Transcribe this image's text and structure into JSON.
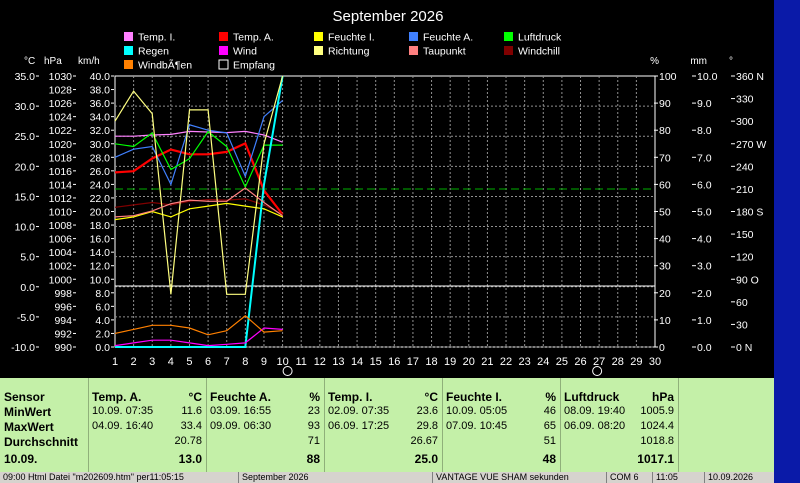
{
  "chart_data": {
    "type": "line",
    "title": "September 2026",
    "x": [
      1,
      2,
      3,
      4,
      5,
      6,
      7,
      8,
      9,
      10
    ],
    "xticks": [
      1,
      2,
      3,
      4,
      5,
      6,
      7,
      8,
      9,
      10,
      11,
      12,
      13,
      14,
      15,
      16,
      17,
      18,
      19,
      20,
      21,
      22,
      23,
      24,
      25,
      26,
      27,
      28,
      29,
      30
    ],
    "xlim": [
      1,
      30
    ],
    "axes_left": [
      {
        "unit": "°C",
        "ticks": [
          "35.0",
          "30.0",
          "25.0",
          "20.0",
          "15.0",
          "10.0",
          "5.0",
          "0.0",
          "-5.0",
          "-10.0"
        ],
        "range": [
          -10,
          35
        ]
      },
      {
        "unit": "hPa",
        "ticks": [
          "1030",
          "1028",
          "1026",
          "1024",
          "1022",
          "1020",
          "1018",
          "1016",
          "1014",
          "1012",
          "1010",
          "1008",
          "1006",
          "1004",
          "1002",
          "1000",
          "998",
          "996",
          "994",
          "992",
          "990"
        ],
        "range": [
          990,
          1030
        ]
      },
      {
        "unit": "km/h",
        "ticks": [
          "40.0",
          "38.0",
          "36.0",
          "34.0",
          "32.0",
          "30.0",
          "28.0",
          "26.0",
          "24.0",
          "22.0",
          "20.0",
          "18.0",
          "16.0",
          "14.0",
          "12.0",
          "10.0",
          "8.0",
          "6.0",
          "4.0",
          "2.0",
          "0.0"
        ],
        "range": [
          0,
          40
        ]
      }
    ],
    "axes_right": [
      {
        "unit": "%",
        "ticks": [
          "100",
          "90",
          "80",
          "70",
          "60",
          "50",
          "40",
          "30",
          "20",
          "10",
          "0"
        ],
        "range": [
          0,
          100
        ]
      },
      {
        "unit": "mm",
        "ticks": [
          "10.0",
          "9.0",
          "8.0",
          "7.0",
          "6.0",
          "5.0",
          "4.0",
          "3.0",
          "2.0",
          "1.0",
          "0.0"
        ],
        "range": [
          0,
          10
        ]
      },
      {
        "unit": "°",
        "ticks": [
          "360 N",
          "330",
          "300",
          "270 W",
          "240",
          "210",
          "180 S",
          "150",
          "120",
          "90  O",
          "60",
          "30",
          "0    N"
        ],
        "range": [
          0,
          360
        ]
      }
    ],
    "reference_line": {
      "color": "#00b000",
      "value_pct": 58.3
    },
    "series": [
      {
        "name": "Temp. I.",
        "color": "#ff80ff",
        "axis": "C",
        "values": [
          25.0,
          25.0,
          25.2,
          25.3,
          25.8,
          25.7,
          25.6,
          25.8,
          25.2,
          24.0
        ]
      },
      {
        "name": "Temp. A.",
        "color": "#ff0000",
        "axis": "C",
        "values": [
          19.0,
          19.2,
          21.3,
          22.8,
          22.0,
          22.0,
          22.4,
          23.8,
          16.0,
          12.0
        ]
      },
      {
        "name": "Feuchte I.",
        "color": "#ffff00",
        "axis": "pct",
        "values": [
          47,
          48,
          50,
          48,
          51,
          52,
          53,
          52,
          51,
          48
        ]
      },
      {
        "name": "Feuchte A.",
        "color": "#4080ff",
        "axis": "pct",
        "values": [
          70,
          73,
          74,
          60,
          82,
          80,
          79,
          63,
          85,
          91
        ]
      },
      {
        "name": "Luftdruck",
        "color": "#00ff00",
        "axis": "hPa",
        "values": [
          1020.0,
          1019.6,
          1021.6,
          1016.2,
          1017.8,
          1021.8,
          1019.6,
          1013.6,
          1019.8,
          1019.8
        ]
      },
      {
        "name": "Windchill",
        "color": "#800000",
        "axis": "C",
        "values": [
          13.2,
          13.6,
          14.0,
          13.6,
          14.2,
          14.5,
          14.4,
          14.6,
          13.6,
          12.0
        ]
      },
      {
        "name": "Regen",
        "color": "#00ffff",
        "axis": "mm",
        "values": [
          0,
          0,
          0,
          0,
          0,
          0,
          0,
          0,
          6.0,
          10.0
        ]
      },
      {
        "name": "Wind",
        "color": "#ff00ff",
        "axis": "kmh",
        "values": [
          0.2,
          0.6,
          1.0,
          1.0,
          0.6,
          0.2,
          0.4,
          0.6,
          2.8,
          2.6
        ]
      },
      {
        "name": "Windböen",
        "color": "#ff8000",
        "axis": "kmh",
        "values": [
          2.0,
          2.6,
          3.2,
          3.2,
          2.8,
          1.8,
          2.4,
          4.6,
          2.2,
          2.4
        ]
      },
      {
        "name": "Richtung",
        "color": "#ffff80",
        "axis": "deg",
        "values": [
          300,
          340,
          310,
          70,
          315,
          315,
          70,
          70,
          270,
          360
        ]
      },
      {
        "name": "Taupunkt",
        "color": "#ff8080",
        "axis": "C",
        "values": [
          11.6,
          11.8,
          12.6,
          13.8,
          14.4,
          14.2,
          14.2,
          16.4,
          14.0,
          11.8
        ]
      },
      {
        "name": "Empfang",
        "color": "#ffffff",
        "axis": "pct",
        "values": [
          null,
          null,
          null,
          null,
          null,
          null,
          null,
          null,
          null,
          null
        ]
      }
    ],
    "legend_labels": [
      "Temp. I.",
      "Temp. A.",
      "Feuchte I.",
      "Feuchte A.",
      "Luftdruck",
      "Regen",
      "Wind",
      "Richtung",
      "Taupunkt",
      "Windchill",
      "WindbÃ¶en",
      "Empfang"
    ],
    "legend_colors": [
      "#ff80ff",
      "#ff0000",
      "#ffff00",
      "#4080ff",
      "#00ff00",
      "#00ffff",
      "#ff00ff",
      "#ffff80",
      "#ff8080",
      "#800000",
      "#ff8000",
      "#000000"
    ]
  },
  "stats": {
    "row_labels": [
      "Sensor",
      "MinWert",
      "MaxWert",
      "Durchschnitt",
      "10.09."
    ],
    "columns": [
      {
        "name": "Temp. A.",
        "unit": "°C",
        "min_time": "10.09.  07:35",
        "min": "11.6",
        "max_time": "04.09.  16:40",
        "max": "33.4",
        "avg": "20.78",
        "current": "13.0"
      },
      {
        "name": "Feuchte A.",
        "unit": "%",
        "min_time": "03.09.  16:55",
        "min": "23",
        "max_time": "09.09.  06:30",
        "max": "93",
        "avg": "71",
        "current": "88"
      },
      {
        "name": "Temp. I.",
        "unit": "°C",
        "min_time": "02.09.  07:35",
        "min": "23.6",
        "max_time": "06.09.  17:25",
        "max": "29.8",
        "avg": "26.67",
        "current": "25.0"
      },
      {
        "name": "Feuchte I.",
        "unit": "%",
        "min_time": "10.09.  05:05",
        "min": "46",
        "max_time": "07.09.  10:45",
        "max": "65",
        "avg": "51",
        "current": "48"
      },
      {
        "name": "Luftdruck",
        "unit": "hPa",
        "min_time": "08.09.  19:40",
        "min": "1005.9",
        "max_time": "06.09.  08:20",
        "max": "1024.4",
        "avg": "1018.8",
        "current": "1017.1"
      }
    ]
  },
  "statusbar": {
    "s1": "09:00  Html Datei  \"m202609.htm\"  per11:05:15",
    "s2": "September 2026",
    "s3": "VANTAGE VUE SHAM  sekunden",
    "s4": "COM 6",
    "s5": "11:05",
    "s6": "10.09.2026"
  }
}
